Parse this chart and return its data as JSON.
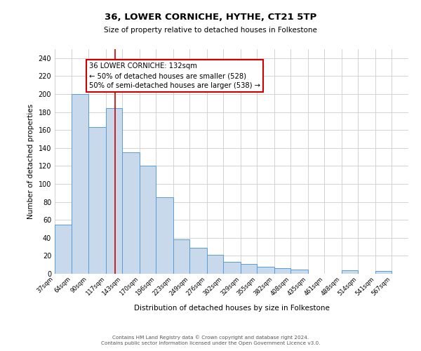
{
  "title": "36, LOWER CORNICHE, HYTHE, CT21 5TP",
  "subtitle": "Size of property relative to detached houses in Folkestone",
  "xlabel": "Distribution of detached houses by size in Folkestone",
  "ylabel": "Number of detached properties",
  "bin_labels": [
    "37sqm",
    "64sqm",
    "90sqm",
    "117sqm",
    "143sqm",
    "170sqm",
    "196sqm",
    "223sqm",
    "249sqm",
    "276sqm",
    "302sqm",
    "329sqm",
    "355sqm",
    "382sqm",
    "408sqm",
    "435sqm",
    "461sqm",
    "488sqm",
    "514sqm",
    "541sqm",
    "567sqm"
  ],
  "bar_heights": [
    55,
    200,
    163,
    184,
    135,
    120,
    85,
    38,
    29,
    21,
    13,
    11,
    8,
    6,
    5,
    0,
    0,
    4,
    0,
    3,
    0
  ],
  "bar_color": "#c8d9ec",
  "bar_edge_color": "#5b9bd5",
  "ylim": [
    0,
    250
  ],
  "yticks": [
    0,
    20,
    40,
    60,
    80,
    100,
    120,
    140,
    160,
    180,
    200,
    220,
    240
  ],
  "property_size": 132,
  "bin_edges": [
    37,
    64,
    90,
    117,
    143,
    170,
    196,
    223,
    249,
    276,
    302,
    329,
    355,
    382,
    408,
    435,
    461,
    488,
    514,
    541,
    567,
    593
  ],
  "annotation_title": "36 LOWER CORNICHE: 132sqm",
  "annotation_line1": "← 50% of detached houses are smaller (528)",
  "annotation_line2": "50% of semi-detached houses are larger (538) →",
  "annotation_box_color": "white",
  "annotation_box_edge_color": "#cc0000",
  "property_line_color": "#cc0000",
  "footnote1": "Contains HM Land Registry data © Crown copyright and database right 2024.",
  "footnote2": "Contains public sector information licensed under the Open Government Licence v3.0.",
  "background_color": "#ffffff",
  "grid_color": "#cccccc"
}
